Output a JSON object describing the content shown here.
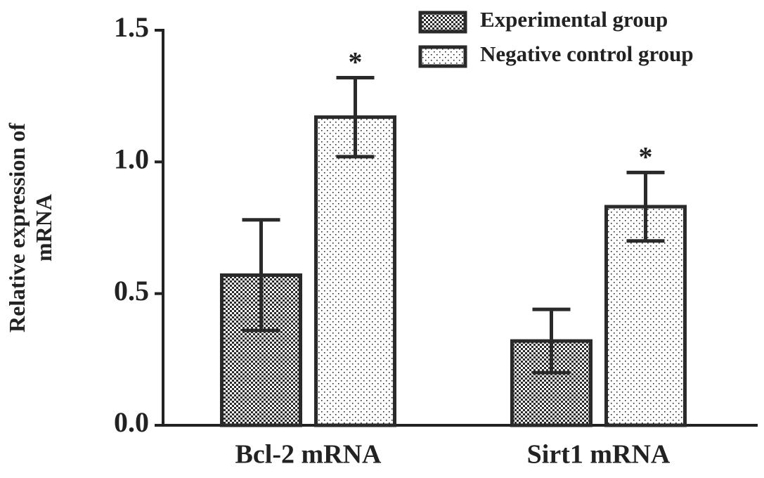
{
  "chart_data": {
    "type": "bar",
    "ylabel": [
      "Relative expression of",
      "mRNA"
    ],
    "categories": [
      "Bcl-2 mRNA",
      "Sirt1 mRNA"
    ],
    "series": [
      {
        "name": "Experimental group",
        "color": "#2a2a2a",
        "pattern": "checker",
        "values": [
          0.57,
          0.32
        ],
        "errors": [
          0.21,
          0.12
        ]
      },
      {
        "name": "Negative control group",
        "color": "#2a2a2a",
        "pattern": "dots",
        "values": [
          1.17,
          0.83
        ],
        "errors": [
          0.15,
          0.13
        ],
        "annotations": [
          "*",
          "*"
        ]
      }
    ],
    "ylim": [
      0,
      1.5
    ],
    "yticks": [
      {
        "value": 0,
        "label": "0.0"
      },
      0.5,
      {
        "value": 1,
        "label": "1.0"
      },
      1.5
    ]
  }
}
